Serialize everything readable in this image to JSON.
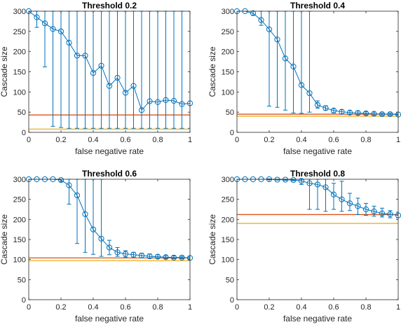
{
  "chart_data": [
    {
      "type": "line",
      "title": "Threshold 0.2",
      "xlabel": "false negative rate",
      "ylabel": "Cascade size",
      "xlim": [
        0,
        1
      ],
      "ylim": [
        0,
        300
      ],
      "xticks": [
        "0",
        "0.2",
        "0.4",
        "0.6",
        "0.8",
        "1"
      ],
      "yticks": [
        "0",
        "50",
        "100",
        "150",
        "200",
        "250",
        "300"
      ],
      "grid": false,
      "x": [
        0,
        0.05,
        0.1,
        0.15,
        0.2,
        0.25,
        0.3,
        0.35,
        0.4,
        0.45,
        0.5,
        0.55,
        0.6,
        0.65,
        0.7,
        0.75,
        0.8,
        0.85,
        0.9,
        0.95,
        1.0
      ],
      "series": [
        {
          "values": [
            300,
            285,
            270,
            256,
            250,
            222,
            190,
            190,
            147,
            165,
            115,
            135,
            98,
            115,
            55,
            77,
            75,
            80,
            78,
            70,
            72
          ],
          "error_low": [
            300,
            260,
            162,
            15,
            12,
            10,
            10,
            10,
            10,
            10,
            10,
            10,
            10,
            10,
            10,
            10,
            10,
            10,
            10,
            10,
            10
          ],
          "error_high": [
            300,
            300,
            300,
            300,
            300,
            300,
            300,
            300,
            300,
            300,
            300,
            300,
            300,
            300,
            300,
            300,
            300,
            300,
            300,
            300,
            300
          ]
        }
      ],
      "reference_lines": [
        {
          "y": 43,
          "color": "#d95319"
        },
        {
          "y": 8,
          "color": "#edb120"
        }
      ]
    },
    {
      "type": "line",
      "title": "Threshold 0.4",
      "xlabel": "false negative rate",
      "ylabel": "Cascade size",
      "xlim": [
        0,
        1
      ],
      "ylim": [
        0,
        300
      ],
      "xticks": [
        "0",
        "0.2",
        "0.4",
        "0.6",
        "0.8",
        "1"
      ],
      "yticks": [
        "0",
        "50",
        "100",
        "150",
        "200",
        "250",
        "300"
      ],
      "grid": false,
      "x": [
        0,
        0.05,
        0.1,
        0.15,
        0.2,
        0.25,
        0.3,
        0.35,
        0.4,
        0.45,
        0.5,
        0.55,
        0.6,
        0.65,
        0.7,
        0.75,
        0.8,
        0.85,
        0.9,
        0.95,
        1.0
      ],
      "series": [
        {
          "values": [
            300,
            300,
            295,
            278,
            255,
            230,
            183,
            163,
            117,
            97,
            68,
            60,
            54,
            51,
            49,
            48,
            47,
            46,
            45,
            45,
            44
          ],
          "error_low": [
            300,
            300,
            290,
            265,
            65,
            62,
            55,
            48,
            47,
            50,
            60,
            55,
            48,
            46,
            44,
            43,
            43,
            42,
            42,
            42,
            42
          ],
          "error_high": [
            300,
            300,
            300,
            300,
            300,
            300,
            300,
            300,
            300,
            300,
            78,
            66,
            59,
            56,
            54,
            53,
            51,
            50,
            48,
            48,
            46
          ]
        }
      ],
      "reference_lines": [
        {
          "y": 45,
          "color": "#d95319"
        },
        {
          "y": 40,
          "color": "#edb120"
        }
      ]
    },
    {
      "type": "line",
      "title": "Threshold 0.6",
      "xlabel": "false negative rate",
      "ylabel": "Cascade size",
      "xlim": [
        0,
        1
      ],
      "ylim": [
        0,
        300
      ],
      "xticks": [
        "0",
        "0.2",
        "0.4",
        "0.6",
        "0.8",
        "1"
      ],
      "yticks": [
        "0",
        "50",
        "100",
        "150",
        "200",
        "250",
        "300"
      ],
      "grid": false,
      "x": [
        0,
        0.05,
        0.1,
        0.15,
        0.2,
        0.25,
        0.3,
        0.35,
        0.4,
        0.45,
        0.5,
        0.55,
        0.6,
        0.65,
        0.7,
        0.75,
        0.8,
        0.85,
        0.9,
        0.95,
        1.0
      ],
      "series": [
        {
          "values": [
            300,
            300,
            300,
            300,
            298,
            285,
            260,
            213,
            175,
            152,
            130,
            118,
            114,
            112,
            110,
            108,
            107,
            106,
            105,
            105,
            104
          ],
          "error_low": [
            300,
            300,
            300,
            300,
            294,
            238,
            140,
            118,
            113,
            108,
            112,
            108,
            106,
            106,
            104,
            103,
            103,
            102,
            102,
            102,
            101
          ],
          "error_high": [
            300,
            300,
            300,
            300,
            300,
            300,
            300,
            300,
            300,
            300,
            148,
            130,
            122,
            118,
            116,
            114,
            112,
            110,
            109,
            108,
            107
          ]
        }
      ],
      "reference_lines": [
        {
          "y": 104,
          "color": "#d95319"
        },
        {
          "y": 97,
          "color": "#edb120"
        }
      ]
    },
    {
      "type": "line",
      "title": "Threshold 0.8",
      "xlabel": "false negative rate",
      "ylabel": "Cascade size",
      "xlim": [
        0,
        1
      ],
      "ylim": [
        0,
        300
      ],
      "xticks": [
        "0",
        "0.2",
        "0.4",
        "0.6",
        "0.8",
        "1"
      ],
      "yticks": [
        "0",
        "50",
        "100",
        "150",
        "200",
        "250",
        "300"
      ],
      "grid": false,
      "x": [
        0,
        0.05,
        0.1,
        0.15,
        0.2,
        0.25,
        0.3,
        0.35,
        0.4,
        0.45,
        0.5,
        0.55,
        0.6,
        0.65,
        0.7,
        0.75,
        0.8,
        0.85,
        0.9,
        0.95,
        1.0
      ],
      "series": [
        {
          "values": [
            300,
            300,
            300,
            300,
            300,
            299,
            299,
            298,
            296,
            290,
            287,
            280,
            262,
            250,
            240,
            233,
            225,
            220,
            215,
            213,
            210
          ],
          "error_low": [
            300,
            300,
            300,
            300,
            299,
            298,
            297,
            296,
            287,
            225,
            225,
            220,
            225,
            220,
            222,
            212,
            210,
            208,
            206,
            204,
            204
          ],
          "error_high": [
            300,
            300,
            300,
            300,
            301,
            300,
            300,
            300,
            300,
            300,
            300,
            300,
            290,
            295,
            265,
            253,
            240,
            233,
            228,
            222,
            218
          ]
        }
      ],
      "reference_lines": [
        {
          "y": 212,
          "color": "#d95319"
        },
        {
          "y": 190,
          "color": "#edb120"
        }
      ]
    }
  ],
  "colors": {
    "series": "#0072bd",
    "axis": "#262626"
  }
}
